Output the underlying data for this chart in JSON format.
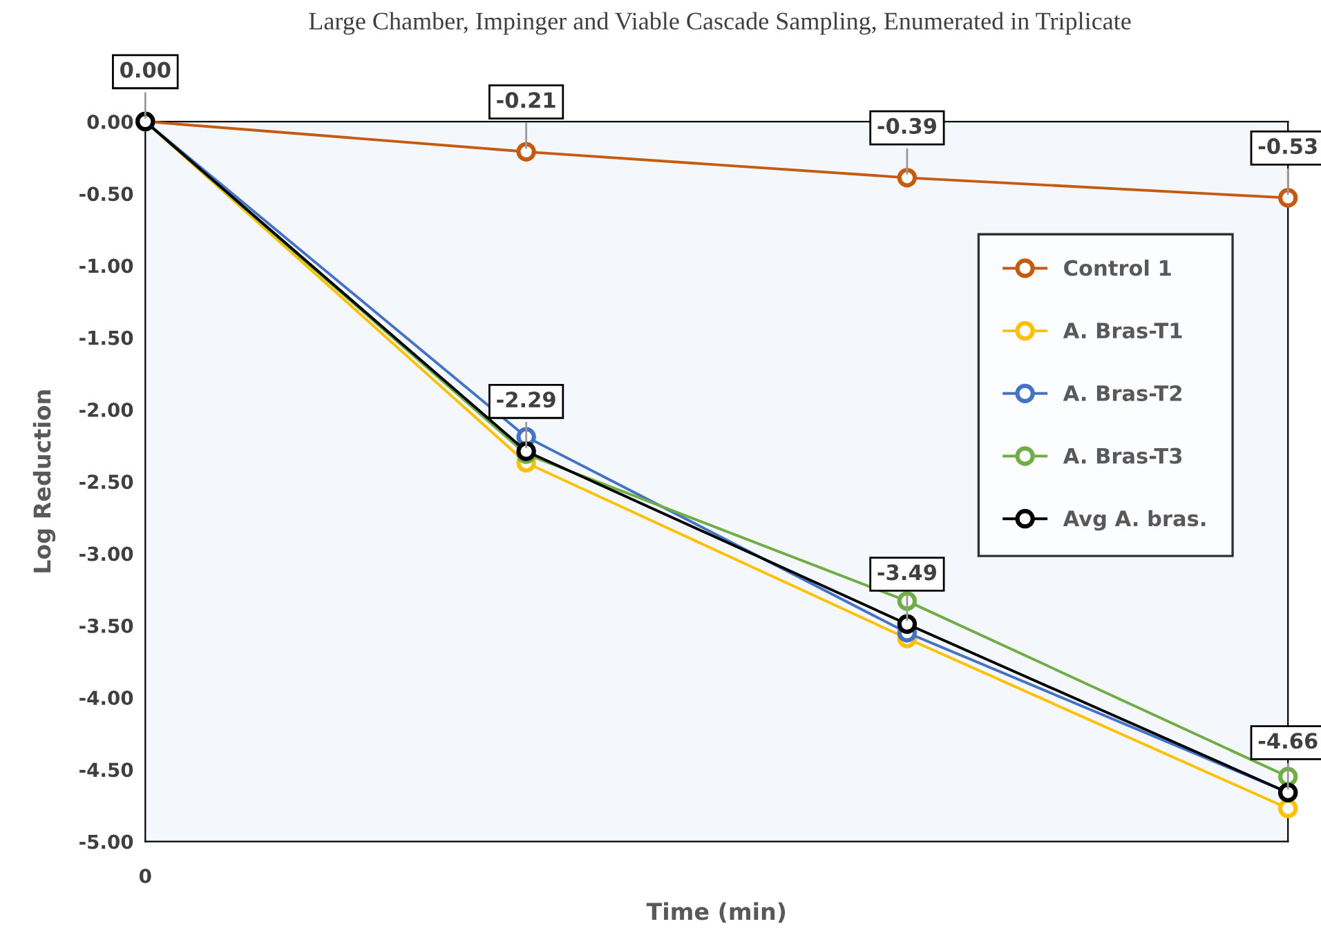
{
  "chart_data": {
    "type": "line",
    "title": "Large Chamber, Impinger and Viable Cascade Sampling, Enumerated in Triplicate",
    "xlabel": "Time (min)",
    "ylabel": "Log Reduction",
    "categories": [
      "0",
      null,
      null,
      null
    ],
    "series": [
      {
        "name": "Control 1",
        "color": "#c55a11",
        "values": [
          0,
          -0.21,
          -0.39,
          -0.53
        ],
        "value_labels": [
          null,
          "-0.21",
          "-0.39",
          "-0.53"
        ]
      },
      {
        "name": "A. Bras-T1",
        "color": "#ffc000",
        "values": [
          0,
          -2.37,
          -3.59,
          -4.77
        ]
      },
      {
        "name": "A. Bras-T2",
        "color": "#4472c4",
        "values": [
          0,
          -2.19,
          -3.55,
          -4.66
        ]
      },
      {
        "name": "A. Bras-T3",
        "color": "#70ad47",
        "values": [
          0,
          -2.31,
          -3.33,
          -4.55
        ]
      },
      {
        "name": "Avg A. bras.",
        "color": "#000000",
        "values": [
          0,
          -2.29,
          -3.49,
          -4.66
        ],
        "value_labels": [
          "0.00",
          "-2.29",
          "-3.49",
          "-4.66"
        ]
      }
    ],
    "ylim": [
      -5,
      0
    ],
    "yticks": [
      {
        "value": -5,
        "label": "-5.00"
      },
      {
        "value": -4.5,
        "label": "-4.50"
      },
      {
        "value": -4,
        "label": "-4.00"
      },
      {
        "value": -3.5,
        "label": "-3.50"
      },
      {
        "value": -3,
        "label": "-3.00"
      },
      {
        "value": -2.5,
        "label": "-2.50"
      },
      {
        "value": -2,
        "label": "-2.00"
      },
      {
        "value": -1.5,
        "label": "-1.50"
      },
      {
        "value": -1,
        "label": "-1.00"
      },
      {
        "value": -0.5,
        "label": "-0.50"
      },
      {
        "value": 0,
        "label": "0.00"
      }
    ],
    "grid": false,
    "legend": "right",
    "marker": "circle",
    "line_style": "solid"
  }
}
